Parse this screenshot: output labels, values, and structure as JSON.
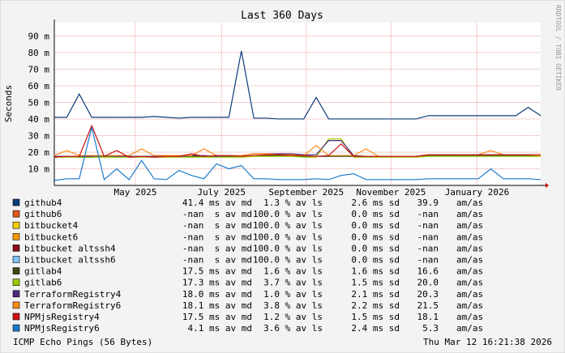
{
  "chart_data": {
    "type": "line",
    "title": "Last 360 Days",
    "y_label": "Seconds",
    "side_label": "RRDTOOL / TOBI OETIKER",
    "footer_left": "ICMP Echo Pings (56 Bytes)",
    "footer_right": "Thu Mar 12 16:21:38 2026",
    "grid": true,
    "categories": [
      null,
      null,
      null,
      null,
      null,
      null,
      null,
      null,
      null,
      null,
      null,
      null,
      null,
      null,
      null,
      null,
      null,
      null,
      null,
      null,
      null,
      null,
      null,
      null,
      null,
      null,
      null,
      null,
      null,
      null,
      null,
      null,
      null,
      null,
      null,
      null,
      null,
      null,
      null,
      null
    ],
    "xticks": [
      {
        "value": 6.5,
        "label": "May 2025"
      },
      {
        "value": 13.4,
        "label": "July 2025"
      },
      {
        "value": 20.2,
        "label": "September 2025"
      },
      {
        "value": 27,
        "label": "November 2025"
      },
      {
        "value": 33.9,
        "label": "January 2026"
      }
    ],
    "ylim": [
      0,
      98
    ],
    "yticks": [
      {
        "value": 10,
        "label": "10 m"
      },
      {
        "value": 20,
        "label": "20 m"
      },
      {
        "value": 30,
        "label": "30 m"
      },
      {
        "value": 40,
        "label": "40 m"
      },
      {
        "value": 50,
        "label": "50 m"
      },
      {
        "value": 60,
        "label": "60 m"
      },
      {
        "value": 70,
        "label": "70 m"
      },
      {
        "value": 80,
        "label": "80 m"
      },
      {
        "value": 90,
        "label": "90 m"
      }
    ],
    "series": [
      {
        "name": "github4",
        "color": "#0b3d7a",
        "stats": [
          "41.4 ms av md",
          "1.3 % av ls",
          "2.6 ms sd",
          "39.9",
          "am/as"
        ],
        "values": [
          41,
          41,
          55,
          41,
          41,
          41,
          41,
          41,
          41.5,
          41,
          40.5,
          41,
          41,
          41,
          41,
          81,
          40.5,
          40.5,
          40,
          40,
          40,
          53,
          40,
          40,
          40,
          40,
          40,
          40,
          40,
          40,
          42,
          42,
          42,
          42,
          42,
          42,
          42,
          42,
          47,
          42
        ]
      },
      {
        "name": "github6",
        "color": "#e0561c",
        "stats": [
          "-nan  s av md",
          "100.0 % av ls",
          "0.0 ms sd",
          "-nan",
          "am/as"
        ]
      },
      {
        "name": "bitbucket4",
        "color": "#f2cc00",
        "stats": [
          "-nan  s av md",
          "100.0 % av ls",
          "0.0 ms sd",
          "-nan",
          "am/as"
        ]
      },
      {
        "name": "bitbucket6",
        "color": "#f59a00",
        "stats": [
          "-nan  s av md",
          "100.0 % av ls",
          "0.0 ms sd",
          "-nan",
          "am/as"
        ]
      },
      {
        "name": "bitbucket altssh4",
        "color": "#8b0d1e",
        "stats": [
          "-nan  s av md",
          "100.0 % av ls",
          "0.0 ms sd",
          "-nan",
          "am/as"
        ]
      },
      {
        "name": "bitbucket altssh6",
        "color": "#7fc4ff",
        "stats": [
          "-nan  s av md",
          "100.0 % av ls",
          "0.0 ms sd",
          "-nan",
          "am/as"
        ]
      },
      {
        "name": "gitlab4",
        "color": "#3b4a14",
        "stats": [
          "17.5 ms av md",
          "1.6 % av ls",
          "1.6 ms sd",
          "16.6",
          "am/as"
        ],
        "values": [
          17,
          17.5,
          17,
          17,
          17.5,
          17.5,
          17.5,
          17.5,
          17.5,
          17.5,
          17.5,
          17.5,
          17.5,
          17.5,
          17.5,
          17.5,
          18,
          18,
          18,
          18,
          17.5,
          17.5,
          17.5,
          17.5,
          17.5,
          17.5,
          17.5,
          17.5,
          17.5,
          17.5,
          18,
          18,
          18,
          18,
          18,
          18,
          18,
          18,
          18,
          18
        ]
      },
      {
        "name": "gitlab6",
        "color": "#9acb00",
        "stats": [
          "17.3 ms av md",
          "3.7 % av ls",
          "1.5 ms sd",
          "20.0",
          "am/as"
        ],
        "values": [
          17,
          17,
          17,
          17,
          17,
          17,
          17,
          17,
          17,
          17,
          17,
          17,
          17,
          17,
          17,
          17,
          17.5,
          17.5,
          17.5,
          17.5,
          17,
          17,
          28,
          28,
          17,
          17,
          17,
          17,
          17,
          17,
          17.5,
          17.5,
          17.5,
          17.5,
          17.5,
          17.5,
          17.5,
          17.5,
          17.5,
          17.5
        ]
      },
      {
        "name": "TerraformRegistry4",
        "color": "#4b2a7a",
        "stats": [
          "18.0 ms av md",
          "1.0 % av ls",
          "2.1 ms sd",
          "20.3",
          "am/as"
        ],
        "values": [
          17.5,
          17.5,
          17.5,
          17.5,
          18,
          17.5,
          17.5,
          17.5,
          17.5,
          18,
          17.5,
          18,
          18,
          17.5,
          18,
          18,
          19,
          19,
          19,
          19,
          18.5,
          18.5,
          27,
          27,
          18,
          17.5,
          17.5,
          17.5,
          17.5,
          17.5,
          18.5,
          18.5,
          18.5,
          18.5,
          18.5,
          18.5,
          18.5,
          18.5,
          18.5,
          18.5
        ]
      },
      {
        "name": "TerraformRegistry6",
        "color": "#ff8c1a",
        "stats": [
          "18.1 ms av md",
          "3.8 % av ls",
          "2.2 ms sd",
          "21.5",
          "am/as"
        ],
        "values": [
          18,
          21,
          18,
          18,
          18,
          18,
          18,
          22,
          18,
          18,
          18,
          18,
          22,
          18,
          18,
          18,
          19,
          19,
          18.5,
          18.5,
          18,
          24,
          18,
          18,
          18,
          22,
          17.5,
          17.5,
          17.5,
          17.5,
          18.5,
          18.5,
          18.5,
          18.5,
          18.5,
          21,
          18.5,
          18.5,
          18.5,
          18
        ]
      },
      {
        "name": "NPMjsRegistry4",
        "color": "#cc1111",
        "stats": [
          "17.5 ms av md",
          "1.2 % av ls",
          "1.5 ms sd",
          "18.1",
          "am/as"
        ],
        "values": [
          17,
          17.5,
          17.5,
          36,
          17.5,
          21,
          17,
          17.5,
          17,
          17.5,
          17.5,
          19,
          17.5,
          18,
          18,
          17.5,
          18,
          18.5,
          18.5,
          18,
          18,
          17.5,
          18,
          25,
          17.5,
          17.5,
          17.5,
          17.5,
          17.5,
          17.5,
          18.5,
          18.5,
          18.5,
          18.5,
          18.5,
          18.5,
          18.5,
          18.5,
          18.5,
          18.5
        ]
      },
      {
        "name": "NPMjsRegistry6",
        "color": "#1a7acc",
        "stats": [
          "4.1 ms av md",
          "3.6 % av ls",
          "2.4 ms sd",
          "5.3",
          "am/as"
        ],
        "values": [
          3,
          4,
          4,
          35,
          3.5,
          10,
          3.5,
          15,
          4,
          3.5,
          9,
          6,
          4,
          13,
          10,
          12,
          4,
          4,
          3.5,
          3.5,
          3.5,
          4,
          3.5,
          6,
          7,
          3.5,
          3.5,
          3.5,
          3.5,
          3.5,
          4,
          4,
          4,
          4,
          4,
          10,
          4,
          4,
          4,
          3.5
        ]
      }
    ]
  }
}
